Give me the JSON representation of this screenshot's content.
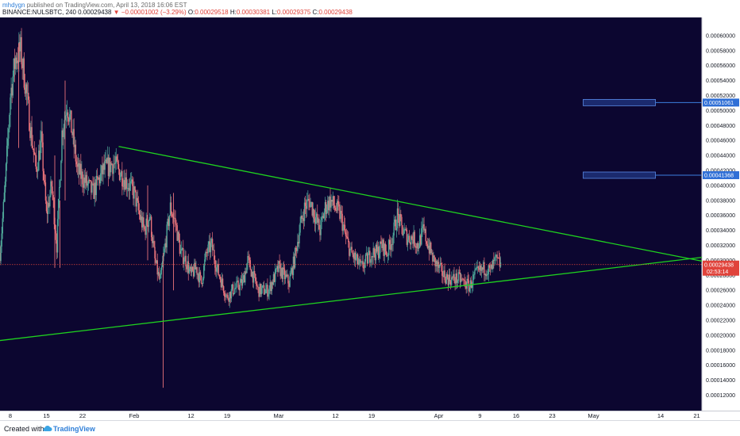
{
  "header": {
    "author": "mhdygn",
    "published_text": "published on TradingView.com, April 13, 2018 16:06 EST",
    "symbol_line": "BINANCE:NULSBTC, 240",
    "last": "0.00029438",
    "change": "▼ −0.00001002 (−3.29%)",
    "open_label": "O:",
    "open": "0.00029518",
    "high_label": "H:",
    "high": "0.00030381",
    "low_label": "L:",
    "low": "0.00029375",
    "close_label": "C:",
    "close": "0.00029438"
  },
  "footer": {
    "created_with": "Created with",
    "brand": "TradingView",
    "logo_icon": "tradingview-cloud-icon"
  },
  "colors": {
    "background": "#0c0630",
    "candle_up": "#4fa89a",
    "candle_down": "#e8737a",
    "trendline": "#1fd21f",
    "price_line": "#e0433b",
    "level_line": "#3d7fe0",
    "level_box_fill": "#1b2a6e",
    "level_box_stroke": "#5a8be8",
    "axis_text": "#131722"
  },
  "chart_data": {
    "type": "candlestick",
    "symbol": "BINANCE:NULSBTC",
    "interval": "240",
    "y_axis": {
      "min": 0.00011,
      "max": 0.00062,
      "ticks": [
        "0.00012000",
        "0.00014000",
        "0.00016000",
        "0.00018000",
        "0.00020000",
        "0.00022000",
        "0.00024000",
        "0.00026000",
        "0.00028000",
        "0.00030000",
        "0.00032000",
        "0.00034000",
        "0.00036000",
        "0.00038000",
        "0.00040000",
        "0.00042000",
        "0.00044000",
        "0.00046000",
        "0.00048000",
        "0.00050000",
        "0.00052000",
        "0.00054000",
        "0.00056000",
        "0.00058000",
        "0.00060000"
      ]
    },
    "x_axis": {
      "start": "2018-01-06",
      "end": "2018-05-22",
      "ticks": [
        {
          "date": "2018-01-08",
          "label": "8"
        },
        {
          "date": "2018-01-15",
          "label": "15"
        },
        {
          "date": "2018-01-22",
          "label": "22"
        },
        {
          "date": "2018-02-01",
          "label": "Feb"
        },
        {
          "date": "2018-02-12",
          "label": "12"
        },
        {
          "date": "2018-02-19",
          "label": "19"
        },
        {
          "date": "2018-03-01",
          "label": "Mar"
        },
        {
          "date": "2018-03-12",
          "label": "12"
        },
        {
          "date": "2018-03-19",
          "label": "19"
        },
        {
          "date": "2018-04-01",
          "label": "Apr"
        },
        {
          "date": "2018-04-09",
          "label": "9"
        },
        {
          "date": "2018-04-16",
          "label": "16"
        },
        {
          "date": "2018-04-23",
          "label": "23"
        },
        {
          "date": "2018-05-01",
          "label": "May"
        },
        {
          "date": "2018-05-14",
          "label": "14"
        },
        {
          "date": "2018-05-21",
          "label": "21"
        }
      ]
    },
    "price_path": [
      [
        "2018-01-06",
        0.00031
      ],
      [
        "2018-01-07",
        0.0004
      ],
      [
        "2018-01-08",
        0.00052
      ],
      [
        "2018-01-09",
        0.00057
      ],
      [
        "2018-01-10",
        0.00058
      ],
      [
        "2018-01-11",
        0.00053
      ],
      [
        "2018-01-12",
        0.00047
      ],
      [
        "2018-01-13",
        0.00042
      ],
      [
        "2018-01-14",
        0.00046
      ],
      [
        "2018-01-15",
        0.00036
      ],
      [
        "2018-01-16",
        0.0004
      ],
      [
        "2018-01-17",
        0.00032
      ],
      [
        "2018-01-18",
        0.00047
      ],
      [
        "2018-01-19",
        0.00051
      ],
      [
        "2018-01-20",
        0.00047
      ],
      [
        "2018-01-21",
        0.00042
      ],
      [
        "2018-01-22",
        0.00041
      ],
      [
        "2018-01-24",
        0.00039
      ],
      [
        "2018-01-26",
        0.00042
      ],
      [
        "2018-01-28",
        0.00043
      ],
      [
        "2018-01-30",
        0.00041
      ],
      [
        "2018-02-01",
        0.00039
      ],
      [
        "2018-02-02",
        0.00036
      ],
      [
        "2018-02-03",
        0.00034
      ],
      [
        "2018-02-04",
        0.00036
      ],
      [
        "2018-02-05",
        0.0003
      ],
      [
        "2018-02-06",
        0.00027
      ],
      [
        "2018-02-07",
        0.00032
      ],
      [
        "2018-02-08",
        0.00037
      ],
      [
        "2018-02-09",
        0.00035
      ],
      [
        "2018-02-10",
        0.00031
      ],
      [
        "2018-02-11",
        0.0003
      ],
      [
        "2018-02-12",
        0.00028
      ],
      [
        "2018-02-13",
        0.00029
      ],
      [
        "2018-02-14",
        0.00027
      ],
      [
        "2018-02-15",
        0.00031
      ],
      [
        "2018-02-16",
        0.00032
      ],
      [
        "2018-02-17",
        0.00029
      ],
      [
        "2018-02-18",
        0.00027
      ],
      [
        "2018-02-19",
        0.00025
      ],
      [
        "2018-02-20",
        0.00026
      ],
      [
        "2018-02-22",
        0.00027
      ],
      [
        "2018-02-23",
        0.0003
      ],
      [
        "2018-02-24",
        0.00028
      ],
      [
        "2018-02-25",
        0.00026
      ],
      [
        "2018-02-27",
        0.00026
      ],
      [
        "2018-03-01",
        0.00029
      ],
      [
        "2018-03-02",
        0.00028
      ],
      [
        "2018-03-03",
        0.00027
      ],
      [
        "2018-03-04",
        0.0003
      ],
      [
        "2018-03-05",
        0.00034
      ],
      [
        "2018-03-06",
        0.00037
      ],
      [
        "2018-03-07",
        0.00038
      ],
      [
        "2018-03-08",
        0.00036
      ],
      [
        "2018-03-09",
        0.00034
      ],
      [
        "2018-03-10",
        0.00037
      ],
      [
        "2018-03-11",
        0.00038
      ],
      [
        "2018-03-12",
        0.00037
      ],
      [
        "2018-03-13",
        0.00036
      ],
      [
        "2018-03-14",
        0.00033
      ],
      [
        "2018-03-15",
        0.00031
      ],
      [
        "2018-03-16",
        0.0003
      ],
      [
        "2018-03-17",
        0.00029
      ],
      [
        "2018-03-18",
        0.0003
      ],
      [
        "2018-03-19",
        0.00031
      ],
      [
        "2018-03-20",
        0.00031
      ],
      [
        "2018-03-21",
        0.00032
      ],
      [
        "2018-03-22",
        0.00031
      ],
      [
        "2018-03-23",
        0.00033
      ],
      [
        "2018-03-24",
        0.00036
      ],
      [
        "2018-03-25",
        0.00034
      ],
      [
        "2018-03-26",
        0.00033
      ],
      [
        "2018-03-27",
        0.00033
      ],
      [
        "2018-03-28",
        0.00032
      ],
      [
        "2018-03-29",
        0.00034
      ],
      [
        "2018-03-30",
        0.00032
      ],
      [
        "2018-03-31",
        0.0003
      ],
      [
        "2018-04-01",
        0.00029
      ],
      [
        "2018-04-02",
        0.00028
      ],
      [
        "2018-04-03",
        0.000275
      ],
      [
        "2018-04-04",
        0.000275
      ],
      [
        "2018-04-05",
        0.000275
      ],
      [
        "2018-04-06",
        0.00027
      ],
      [
        "2018-04-07",
        0.000265
      ],
      [
        "2018-04-08",
        0.00028
      ],
      [
        "2018-04-09",
        0.000285
      ],
      [
        "2018-04-10",
        0.00029
      ],
      [
        "2018-04-11",
        0.000285
      ],
      [
        "2018-04-12",
        0.0003
      ],
      [
        "2018-04-13",
        0.000294
      ]
    ],
    "spikes": [
      {
        "date": "2018-01-09",
        "high": 0.00059,
        "low": 0.00045
      },
      {
        "date": "2018-01-16",
        "high": 0.00044,
        "low": 0.00029
      },
      {
        "date": "2018-01-17",
        "high": 0.00038,
        "low": 0.00029
      },
      {
        "date": "2018-01-18",
        "high": 0.00054,
        "low": 0.00038
      },
      {
        "date": "2018-02-03",
        "high": 0.0004,
        "low": 0.0003
      },
      {
        "date": "2018-02-06",
        "high": 0.00031,
        "low": 0.00013
      },
      {
        "date": "2018-02-08",
        "high": 0.00039,
        "low": 0.00026
      }
    ],
    "trendlines": [
      {
        "name": "upper",
        "from": [
          "2018-01-29",
          0.000452
        ],
        "to": [
          "2018-05-22",
          0.000299
        ]
      },
      {
        "name": "lower",
        "from": [
          "2018-01-06",
          0.000193
        ],
        "to": [
          "2018-05-22",
          0.000304
        ]
      }
    ],
    "current_price": {
      "value": 0.00029438,
      "label": "0.00029438",
      "countdown": "02:53:14"
    },
    "horizontal_levels": [
      {
        "value": 0.00051061,
        "label": "0.00051061",
        "box_from": "2018-04-29",
        "box_to": "2018-05-13"
      },
      {
        "value": 0.00041368,
        "label": "0.00041368",
        "box_from": "2018-04-29",
        "box_to": "2018-05-13"
      }
    ]
  }
}
